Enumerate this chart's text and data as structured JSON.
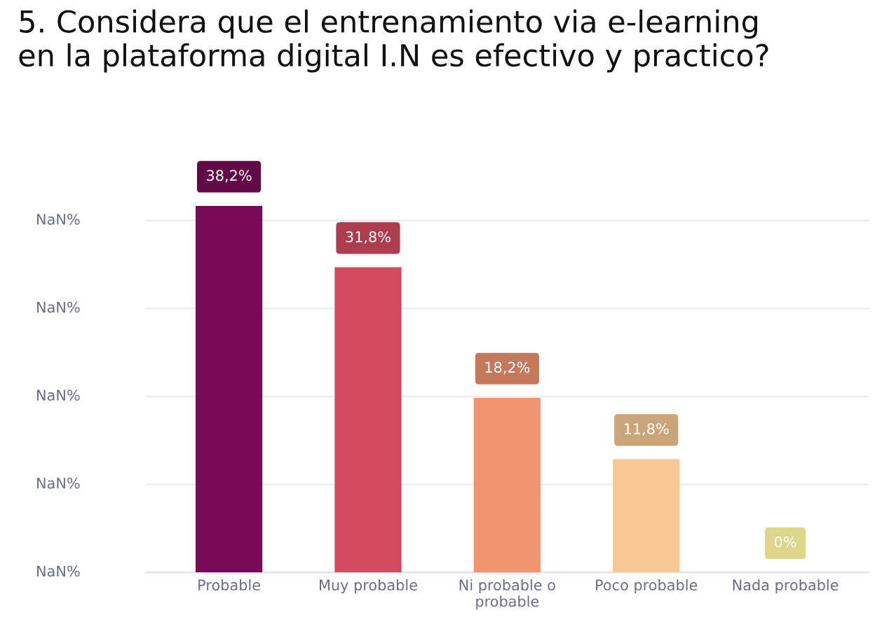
{
  "chart_data": {
    "type": "bar",
    "title": "5. Considera que el entrenamiento via e-learning\nen la plataforma digital I.N es efectivo y practico?",
    "categories": [
      "Probable",
      "Muy probable",
      "Ni probable o\nprobable",
      "Poco probable",
      "Nada probable"
    ],
    "values": [
      38.2,
      31.8,
      18.2,
      11.8,
      0
    ],
    "value_labels": [
      "38,2%",
      "31,8%",
      "18,2%",
      "11,8%",
      "0%"
    ],
    "colors": [
      "#780b57",
      "#d34a5f",
      "#f09470",
      "#f8c995",
      "#dcd58a"
    ],
    "annotations": [
      "NaN%",
      "NaN%",
      "NaN%",
      "NaN%",
      "NaN%"
    ],
    "legend": false
  }
}
